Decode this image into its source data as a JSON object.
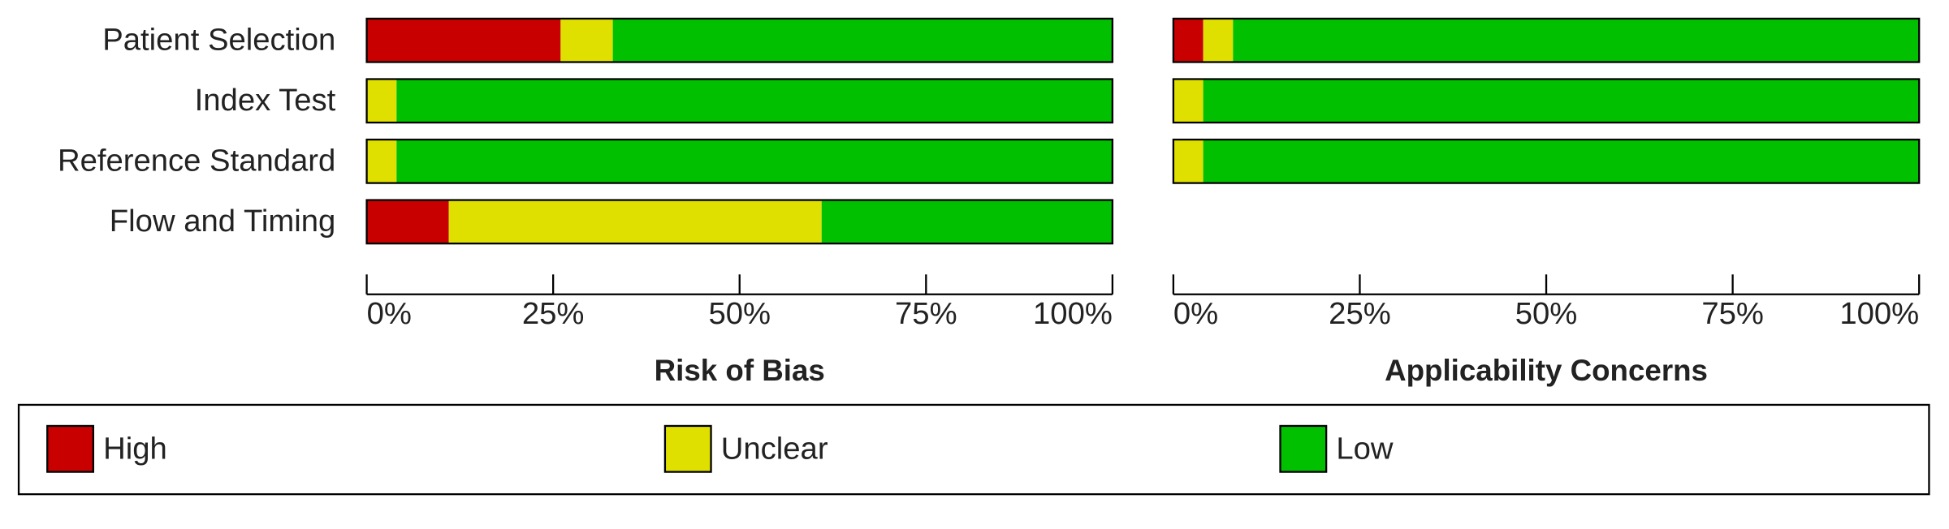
{
  "chart_data": [
    {
      "type": "bar",
      "orientation": "horizontal",
      "stacked": true,
      "title": "Risk of Bias",
      "categories": [
        "Patient Selection",
        "Index Test",
        "Reference Standard",
        "Flow and Timing"
      ],
      "series": [
        {
          "name": "High",
          "color": "#c80000",
          "values": [
            26,
            0,
            0,
            11
          ]
        },
        {
          "name": "Unclear",
          "color": "#e0e000",
          "values": [
            7,
            4,
            4,
            50
          ]
        },
        {
          "name": "Low",
          "color": "#00c000",
          "values": [
            67,
            96,
            96,
            39
          ]
        }
      ],
      "xlim": [
        0,
        100
      ],
      "xticks": [
        {
          "value": 0,
          "label": "0%"
        },
        {
          "value": 25,
          "label": "25%"
        },
        {
          "value": 50,
          "label": "50%"
        },
        {
          "value": 75,
          "label": "75%"
        },
        {
          "value": 100,
          "label": "100%"
        }
      ]
    },
    {
      "type": "bar",
      "orientation": "horizontal",
      "stacked": true,
      "title": "Applicability Concerns",
      "series": [
        {
          "color": "#c80000",
          "values": [
            4,
            0,
            0,
            null
          ]
        },
        {
          "color": "#e0e000",
          "values": [
            4,
            4,
            4,
            null
          ]
        },
        {
          "color": "#00c000",
          "values": [
            92,
            96,
            96,
            null
          ]
        }
      ],
      "xlim": [
        0,
        100
      ],
      "xticks": [
        {
          "value": 0,
          "label": "0%"
        },
        {
          "value": 25,
          "label": "25%"
        },
        {
          "value": 50,
          "label": "50%"
        },
        {
          "value": 75,
          "label": "75%"
        },
        {
          "value": 100,
          "label": "100%"
        }
      ]
    }
  ]
}
